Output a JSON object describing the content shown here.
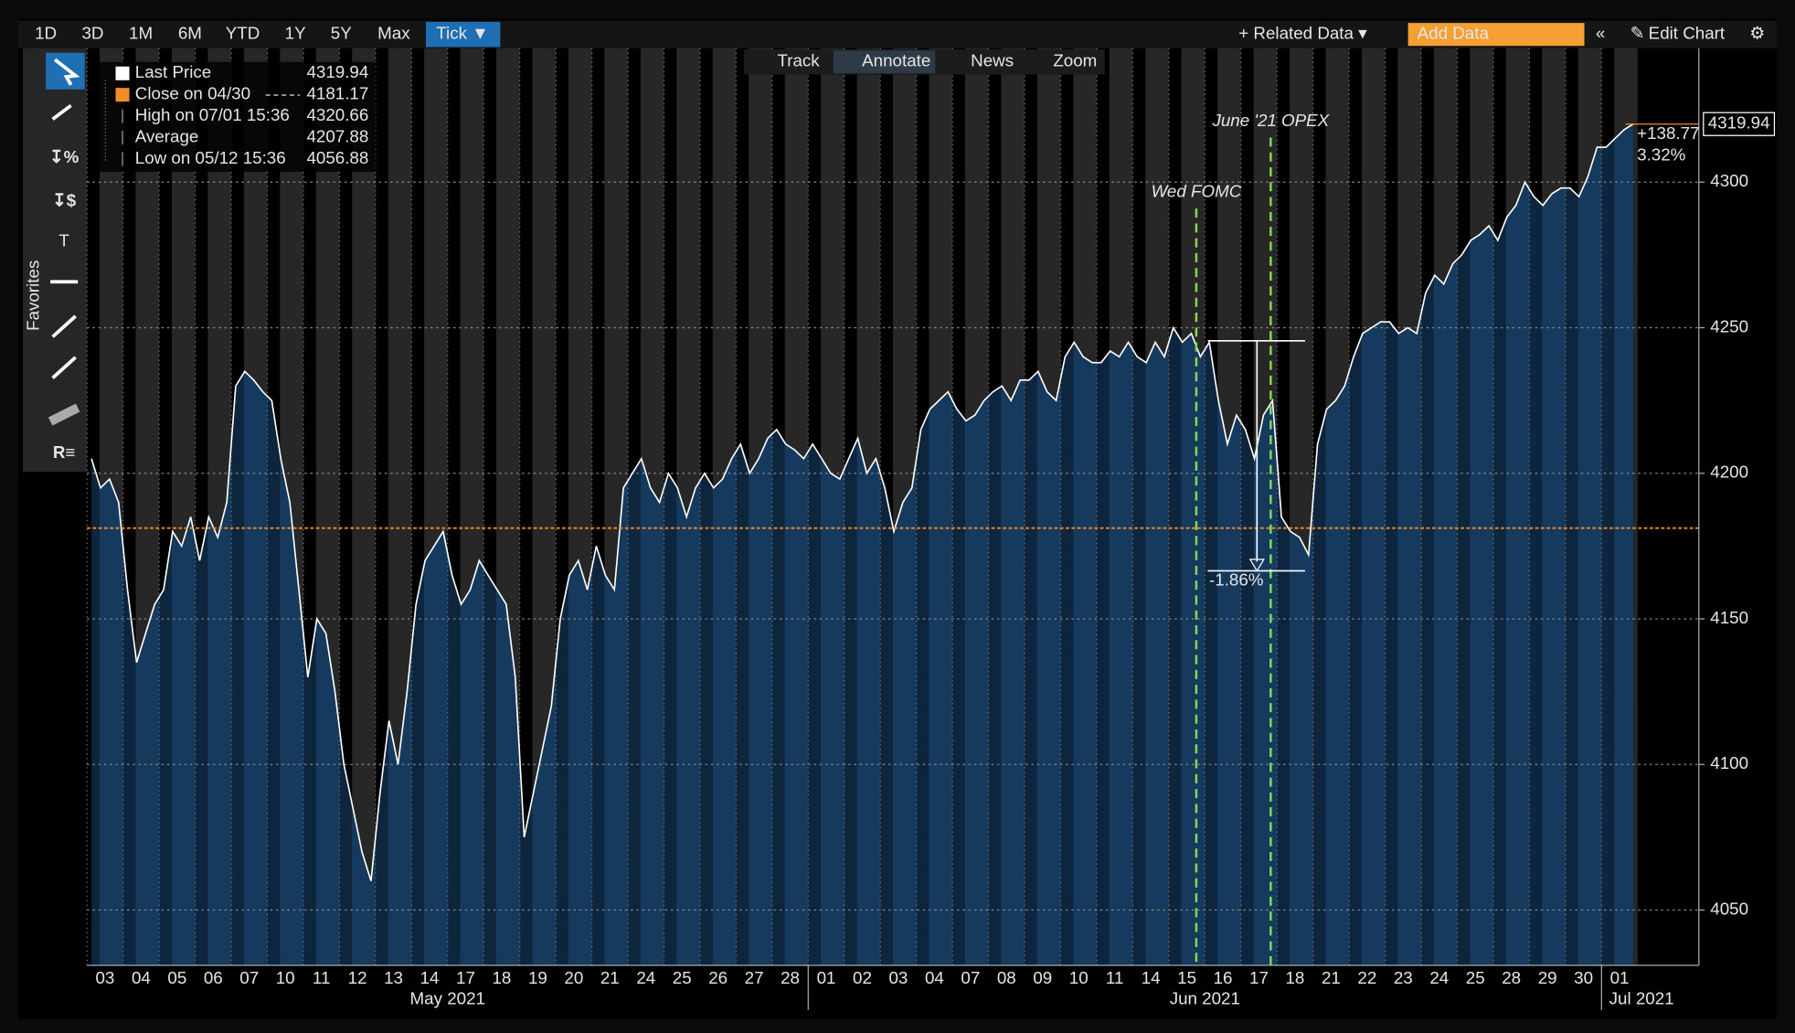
{
  "toolbar": {
    "ranges": [
      "1D",
      "3D",
      "1M",
      "6M",
      "YTD",
      "1Y",
      "5Y",
      "Max"
    ],
    "selected": "Tick ▼",
    "related": "+ Related Data ▾",
    "add_data": "Add Data",
    "edit": "Edit Chart"
  },
  "chart_tools": [
    "Track",
    "Annotate",
    "News",
    "Zoom"
  ],
  "favorites": "Favorites",
  "legend": [
    {
      "label": "Last Price",
      "value": 4319.94
    },
    {
      "label": "Close on 04/30",
      "value": 4181.17
    },
    {
      "label": "High on 07/01 15:36",
      "value": 4320.66
    },
    {
      "label": "Average",
      "value": 4207.88
    },
    {
      "label": "Low on 05/12 15:36",
      "value": 4056.88
    }
  ],
  "chart_data": {
    "type": "area",
    "color": "#153a5e",
    "line_color": "#ffffff",
    "reference_color": "#f28c28",
    "categories": [
      "03",
      "04",
      "05",
      "06",
      "07",
      "10",
      "11",
      "12",
      "13",
      "14",
      "17",
      "18",
      "19",
      "20",
      "21",
      "24",
      "25",
      "26",
      "27",
      "28",
      "01",
      "02",
      "03",
      "04",
      "07",
      "08",
      "09",
      "10",
      "11",
      "14",
      "15",
      "16",
      "17",
      "18",
      "21",
      "22",
      "23",
      "24",
      "25",
      "28",
      "29",
      "30",
      "01"
    ],
    "months": [
      "May 2021",
      "Jun 2021",
      "Jul 2021"
    ],
    "values": [
      [
        4205,
        4195,
        4198,
        4190
      ],
      [
        4160,
        4135,
        4145,
        4155
      ],
      [
        4160,
        4180,
        4175,
        4185
      ],
      [
        4170,
        4185,
        4178,
        4190
      ],
      [
        4230,
        4235,
        4232,
        4228
      ],
      [
        4225,
        4205,
        4190,
        4160
      ],
      [
        4130,
        4150,
        4145,
        4125
      ],
      [
        4100,
        4085,
        4070,
        4060
      ],
      [
        4090,
        4115,
        4100,
        4125
      ],
      [
        4155,
        4170,
        4175,
        4180
      ],
      [
        4165,
        4155,
        4160,
        4170
      ],
      [
        4165,
        4160,
        4155,
        4130
      ],
      [
        4075,
        4090,
        4105,
        4120
      ],
      [
        4150,
        4165,
        4170,
        4160
      ],
      [
        4175,
        4165,
        4160,
        4195
      ],
      [
        4200,
        4205,
        4195,
        4190
      ],
      [
        4200,
        4195,
        4185,
        4195
      ],
      [
        4200,
        4195,
        4198,
        4205
      ],
      [
        4210,
        4200,
        4205,
        4212
      ],
      [
        4215,
        4210,
        4208,
        4205
      ],
      [
        4210,
        4205,
        4200,
        4198
      ],
      [
        4205,
        4212,
        4200,
        4205
      ],
      [
        4195,
        4180,
        4190,
        4195
      ],
      [
        4215,
        4222,
        4225,
        4228
      ],
      [
        4222,
        4218,
        4220,
        4225
      ],
      [
        4228,
        4230,
        4225,
        4232
      ],
      [
        4232,
        4235,
        4228,
        4225
      ],
      [
        4240,
        4245,
        4240,
        4238
      ],
      [
        4238,
        4242,
        4240,
        4245
      ],
      [
        4240,
        4238,
        4245,
        4240
      ],
      [
        4250,
        4245,
        4248,
        4240
      ],
      [
        4245,
        4225,
        4210,
        4220
      ],
      [
        4215,
        4205,
        4220,
        4225
      ],
      [
        4185,
        4180,
        4178,
        4172
      ],
      [
        4210,
        4222,
        4225,
        4230
      ],
      [
        4240,
        4248,
        4250,
        4252
      ],
      [
        4252,
        4248,
        4250,
        4248
      ],
      [
        4262,
        4268,
        4265,
        4272
      ],
      [
        4275,
        4280,
        4282,
        4285
      ],
      [
        4280,
        4288,
        4292,
        4300
      ],
      [
        4295,
        4292,
        4296,
        4298
      ],
      [
        4298,
        4295,
        4302,
        4312
      ],
      [
        4312,
        4315,
        4318,
        4319.94
      ]
    ],
    "ylim": [
      4031,
      4346
    ],
    "yticks": [
      4050,
      4100,
      4150,
      4200,
      4250,
      4300
    ],
    "grid": true,
    "annotations": [
      {
        "text": "Wed FOMC",
        "color": "#7ed957"
      },
      {
        "text": "June '21 OPEX",
        "color": "#7ed957"
      }
    ],
    "measure": {
      "from": 4245.5,
      "to": 4166.5,
      "label": "-1.86%"
    },
    "change": {
      "value": 138.77,
      "value_label": "+138.77",
      "percent_label": "3.32%"
    }
  }
}
